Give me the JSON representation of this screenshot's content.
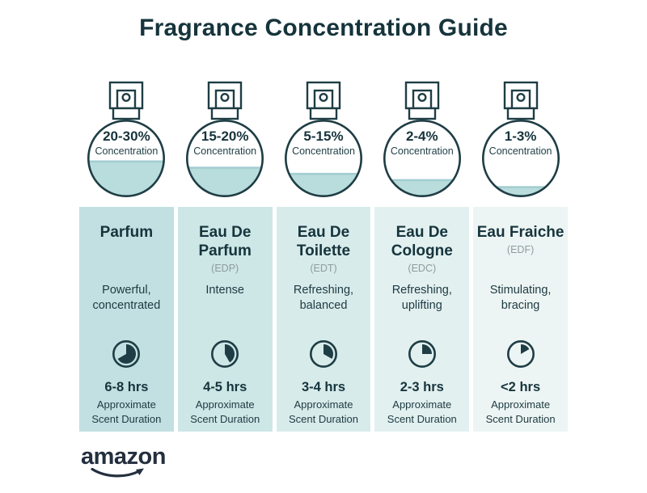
{
  "title": "Fragrance Concentration Guide",
  "brand": "amazon",
  "colors": {
    "title_text": "#16343c",
    "outline": "#1e3d44",
    "liquid": "#b9dcdd",
    "liquid_edge": "#a3ced1",
    "abbr_text": "#8e9c9d",
    "brand_text": "#232f3e",
    "column_backgrounds": [
      "#c2e0e1",
      "#cde6e6",
      "#d8ebeb",
      "#e2f0f0",
      "#edf5f4"
    ]
  },
  "columns": [
    {
      "concentration": "20-30%",
      "concentration_label": "Concentration",
      "fill_percent": 46,
      "name": "Parfum",
      "abbr": "",
      "description": "Powerful, concentrated",
      "clock_degrees": 240,
      "duration": "6-8 hrs",
      "duration_label": "Approximate Scent Duration"
    },
    {
      "concentration": "15-20%",
      "concentration_label": "Concentration",
      "fill_percent": 38,
      "name": "Eau De Parfum",
      "abbr": "(EDP)",
      "description": "Intense",
      "clock_degrees": 150,
      "duration": "4-5 hrs",
      "duration_label": "Approximate Scent Duration"
    },
    {
      "concentration": "5-15%",
      "concentration_label": "Concentration",
      "fill_percent": 30,
      "name": "Eau De Toilette",
      "abbr": "(EDT)",
      "description": "Refreshing, balanced",
      "clock_degrees": 120,
      "duration": "3-4 hrs",
      "duration_label": "Approximate Scent Duration"
    },
    {
      "concentration": "2-4%",
      "concentration_label": "Concentration",
      "fill_percent": 22,
      "name": "Eau De Cologne",
      "abbr": "(EDC)",
      "description": "Refreshing, uplifting",
      "clock_degrees": 90,
      "duration": "2-3 hrs",
      "duration_label": "Approximate Scent Duration"
    },
    {
      "concentration": "1-3%",
      "concentration_label": "Concentration",
      "fill_percent": 13,
      "name": "Eau Fraiche",
      "abbr": "(EDF)",
      "description": "Stimulating, bracing",
      "clock_degrees": 60,
      "duration": "<2 hrs",
      "duration_label": "Approximate Scent Duration"
    }
  ]
}
